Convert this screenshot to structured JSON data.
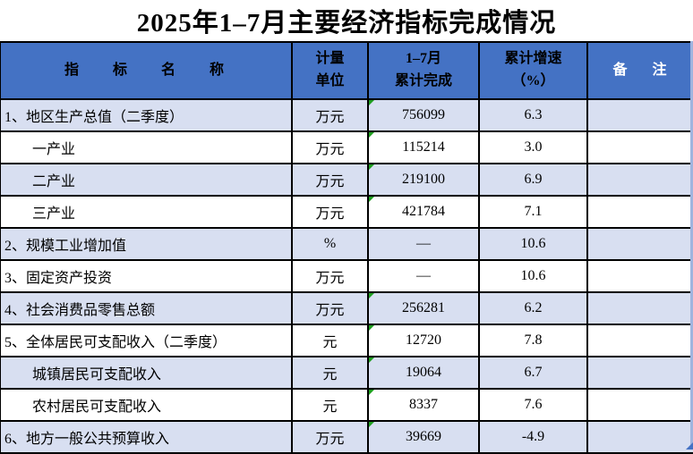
{
  "title": "2025年1–7月主要经济指标完成情况",
  "colors": {
    "header_bg": "#4472C4",
    "stripe_bg": "#D8DFF1",
    "flag_green": "#1FA01F",
    "handle_blue": "#4472C4",
    "edge_blue": "#9FB4DE"
  },
  "table": {
    "headers": [
      {
        "id": "indicator",
        "label": "指 标 名 称"
      },
      {
        "id": "unit",
        "label": "计量\n单位"
      },
      {
        "id": "completed",
        "label": "1–7月\n累计完成"
      },
      {
        "id": "growth",
        "label": "累计增速\n（%）"
      },
      {
        "id": "note",
        "label": "备 注"
      }
    ],
    "rows": [
      {
        "name": "1、地区生产总值（二季度）",
        "indent": false,
        "unit": "万元",
        "value": "756099",
        "growth": "6.3",
        "note": "",
        "flag": true
      },
      {
        "name": "一产业",
        "indent": true,
        "unit": "万元",
        "value": "115214",
        "growth": "3.0",
        "note": "",
        "flag": true
      },
      {
        "name": "二产业",
        "indent": true,
        "unit": "万元",
        "value": "219100",
        "growth": "6.9",
        "note": "",
        "flag": true
      },
      {
        "name": "三产业",
        "indent": true,
        "unit": "万元",
        "value": "421784",
        "growth": "7.1",
        "note": "",
        "flag": true
      },
      {
        "name": "2、规模工业增加值",
        "indent": false,
        "unit": "%",
        "value": "—",
        "growth": "10.6",
        "note": "",
        "flag": false
      },
      {
        "name": "3、固定资产投资",
        "indent": false,
        "unit": "万元",
        "value": "—",
        "growth": "10.6",
        "note": "",
        "flag": false
      },
      {
        "name": "4、社会消费品零售总额",
        "indent": false,
        "unit": "万元",
        "value": "256281",
        "growth": "6.2",
        "note": "",
        "flag": true
      },
      {
        "name": "5、全体居民可支配收入（二季度）",
        "indent": false,
        "unit": "元",
        "value": "12720",
        "growth": "7.8",
        "note": "",
        "flag": true
      },
      {
        "name": "城镇居民可支配收入",
        "indent": true,
        "unit": "元",
        "value": "19064",
        "growth": "6.7",
        "note": "",
        "flag": true
      },
      {
        "name": "农村居民可支配收入",
        "indent": true,
        "unit": "元",
        "value": "8337",
        "growth": "7.6",
        "note": "",
        "flag": true
      },
      {
        "name": "6、地方一般公共预算收入",
        "indent": false,
        "unit": "万元",
        "value": "39669",
        "growth": "-4.9",
        "note": "",
        "flag": true
      }
    ]
  }
}
